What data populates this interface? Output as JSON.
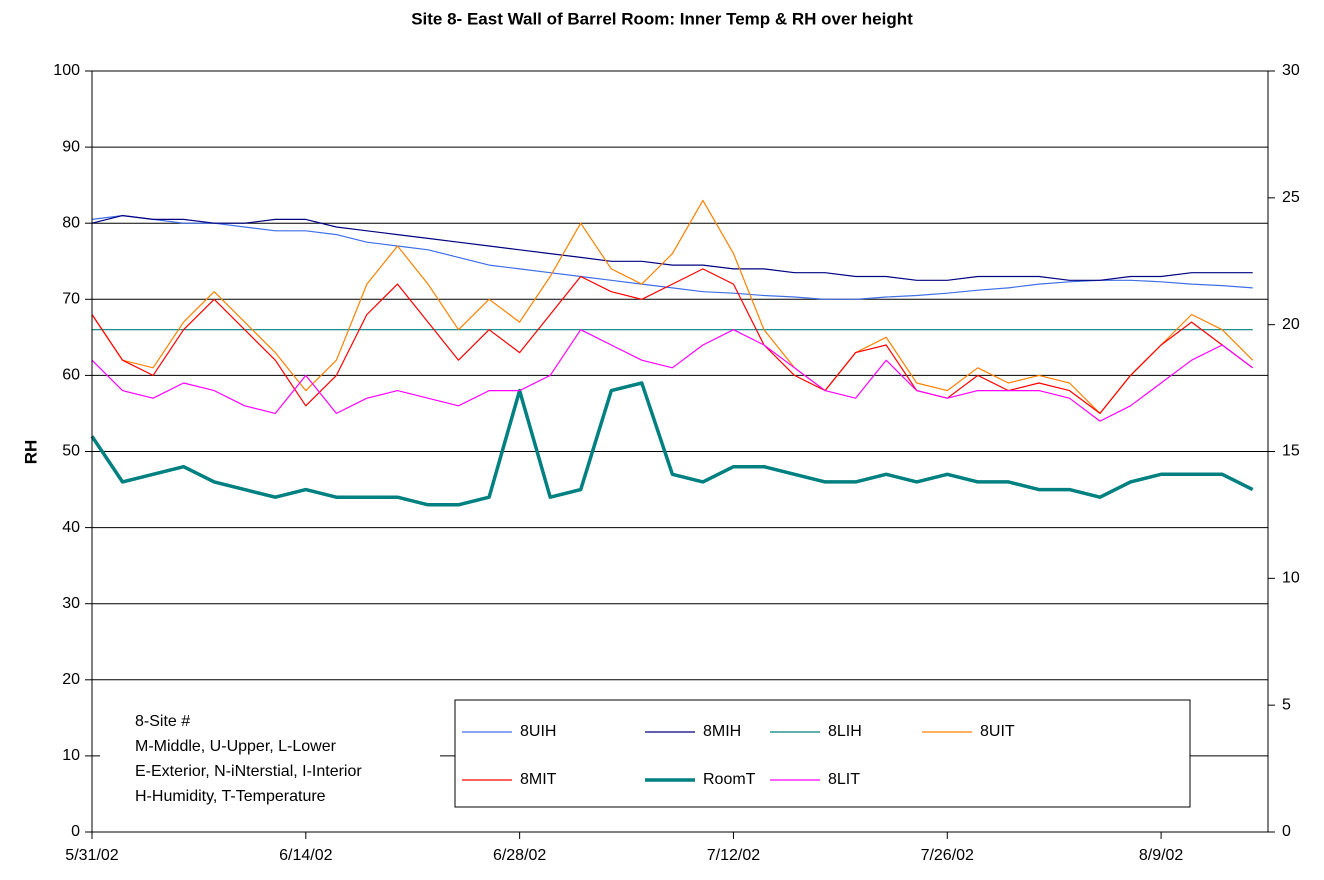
{
  "chart_data": {
    "type": "line",
    "title": "Site 8- East Wall of Barrel Room: Inner Temp & RH over height",
    "ylabel": "RH",
    "x": [
      "5/31/02",
      "6/2/02",
      "6/4/02",
      "6/6/02",
      "6/8/02",
      "6/10/02",
      "6/12/02",
      "6/14/02",
      "6/16/02",
      "6/18/02",
      "6/20/02",
      "6/22/02",
      "6/24/02",
      "6/26/02",
      "6/28/02",
      "6/30/02",
      "7/2/02",
      "7/4/02",
      "7/6/02",
      "7/8/02",
      "7/10/02",
      "7/12/02",
      "7/14/02",
      "7/16/02",
      "7/18/02",
      "7/20/02",
      "7/22/02",
      "7/24/02",
      "7/26/02",
      "7/28/02",
      "7/30/02",
      "8/1/02",
      "8/3/02",
      "8/5/02",
      "8/7/02",
      "8/9/02",
      "8/11/02",
      "8/13/02",
      "8/15/02"
    ],
    "xlim": [
      "5/31/02",
      "8/16/02"
    ],
    "xticks": [
      "5/31/02",
      "6/14/02",
      "6/28/02",
      "7/12/02",
      "7/26/02",
      "8/9/02"
    ],
    "ylim": [
      0,
      100
    ],
    "yticks": [
      0,
      10,
      20,
      30,
      40,
      50,
      60,
      70,
      80,
      90,
      100
    ],
    "y2lim": [
      0,
      30
    ],
    "y2ticks": [
      0,
      5,
      10,
      15,
      20,
      25,
      30
    ],
    "grid": true,
    "legend": "lower center",
    "annotations": [
      "8-Site #",
      "M-Middle, U-Upper, L-Lower",
      "E-Exterior, N-iNterstial, I-Interior",
      "H-Humidity, T-Temperature"
    ],
    "series": [
      {
        "name": "8UIH",
        "color": "#3f6fe6",
        "width": 1.2,
        "values": [
          80.5,
          81,
          80.5,
          80,
          80,
          79.5,
          79,
          79,
          78.5,
          77.5,
          77,
          76.5,
          75.5,
          74.5,
          74,
          73.5,
          73,
          72.5,
          72,
          71.5,
          71,
          70.8,
          70.5,
          70.3,
          70,
          70,
          70.3,
          70.5,
          70.8,
          71.2,
          71.5,
          72,
          72.3,
          72.5,
          72.5,
          72.3,
          72,
          71.8,
          71.5
        ]
      },
      {
        "name": "8MIH",
        "color": "#000080",
        "width": 1.2,
        "values": [
          80,
          81,
          80.5,
          80.5,
          80,
          80,
          80.5,
          80.5,
          79.5,
          79,
          78.5,
          78,
          77.5,
          77,
          76.5,
          76,
          75.5,
          75,
          75,
          74.5,
          74.5,
          74,
          74,
          73.5,
          73.5,
          73,
          73,
          72.5,
          72.5,
          73,
          73,
          73,
          72.5,
          72.5,
          73,
          73,
          73.5,
          73.5,
          73.5
        ]
      },
      {
        "name": "8LIH",
        "color": "#008080",
        "width": 1.2,
        "values": [
          66,
          66,
          66,
          66,
          66,
          66,
          66,
          66,
          66,
          66,
          66,
          66,
          66,
          66,
          66,
          66,
          66,
          66,
          66,
          66,
          66,
          66,
          66,
          66,
          66,
          66,
          66,
          66,
          66,
          66,
          66,
          66,
          66,
          66,
          66,
          66,
          66,
          66,
          66
        ]
      },
      {
        "name": "8UIT",
        "color": "#ff8000",
        "width": 1.2,
        "axis": "y2",
        "values": [
          20.4,
          18.6,
          18.3,
          20.1,
          21.3,
          20.1,
          18.9,
          17.4,
          18.6,
          21.6,
          23.1,
          21.6,
          19.8,
          21.0,
          20.1,
          21.9,
          24.0,
          22.2,
          21.6,
          22.8,
          24.9,
          22.8,
          19.8,
          18.3,
          17.4,
          18.9,
          19.5,
          17.7,
          17.4,
          18.3,
          17.7,
          18.0,
          17.7,
          16.5,
          18.0,
          19.2,
          20.4,
          19.8,
          18.6
        ]
      },
      {
        "name": "8MIT",
        "color": "#ff0000",
        "width": 1.2,
        "axis": "y2",
        "values": [
          20.4,
          18.6,
          18.0,
          19.8,
          21.0,
          19.8,
          18.6,
          16.8,
          18.0,
          20.4,
          21.6,
          20.1,
          18.6,
          19.8,
          18.9,
          20.4,
          21.9,
          21.3,
          21.0,
          21.6,
          22.2,
          21.6,
          19.2,
          18.0,
          17.4,
          18.9,
          19.2,
          17.4,
          17.1,
          18.0,
          17.4,
          17.7,
          17.4,
          16.5,
          18.0,
          19.2,
          20.1,
          19.2,
          18.3
        ]
      },
      {
        "name": "RoomT",
        "color": "#008080",
        "width": 3.5,
        "axis": "y2",
        "values": [
          15.6,
          13.8,
          14.1,
          14.4,
          13.8,
          13.5,
          13.2,
          13.5,
          13.2,
          13.2,
          13.2,
          12.9,
          12.9,
          13.2,
          17.4,
          13.2,
          13.5,
          17.4,
          17.7,
          14.1,
          13.8,
          14.4,
          14.4,
          14.1,
          13.8,
          13.8,
          14.1,
          13.8,
          14.1,
          13.8,
          13.8,
          13.5,
          13.5,
          13.2,
          13.8,
          14.1,
          14.1,
          14.1,
          13.5
        ]
      },
      {
        "name": "8LIT",
        "color": "#ff00ff",
        "width": 1.2,
        "axis": "y2",
        "values": [
          18.6,
          17.4,
          17.1,
          17.7,
          17.4,
          16.8,
          16.5,
          18.0,
          16.5,
          17.1,
          17.4,
          17.1,
          16.8,
          17.4,
          17.4,
          18.0,
          19.8,
          19.2,
          18.6,
          18.3,
          19.2,
          19.8,
          19.2,
          18.3,
          17.4,
          17.1,
          18.6,
          17.4,
          17.1,
          17.4,
          17.4,
          17.4,
          17.1,
          16.2,
          16.8,
          17.7,
          18.6,
          19.2,
          18.3
        ]
      }
    ]
  }
}
